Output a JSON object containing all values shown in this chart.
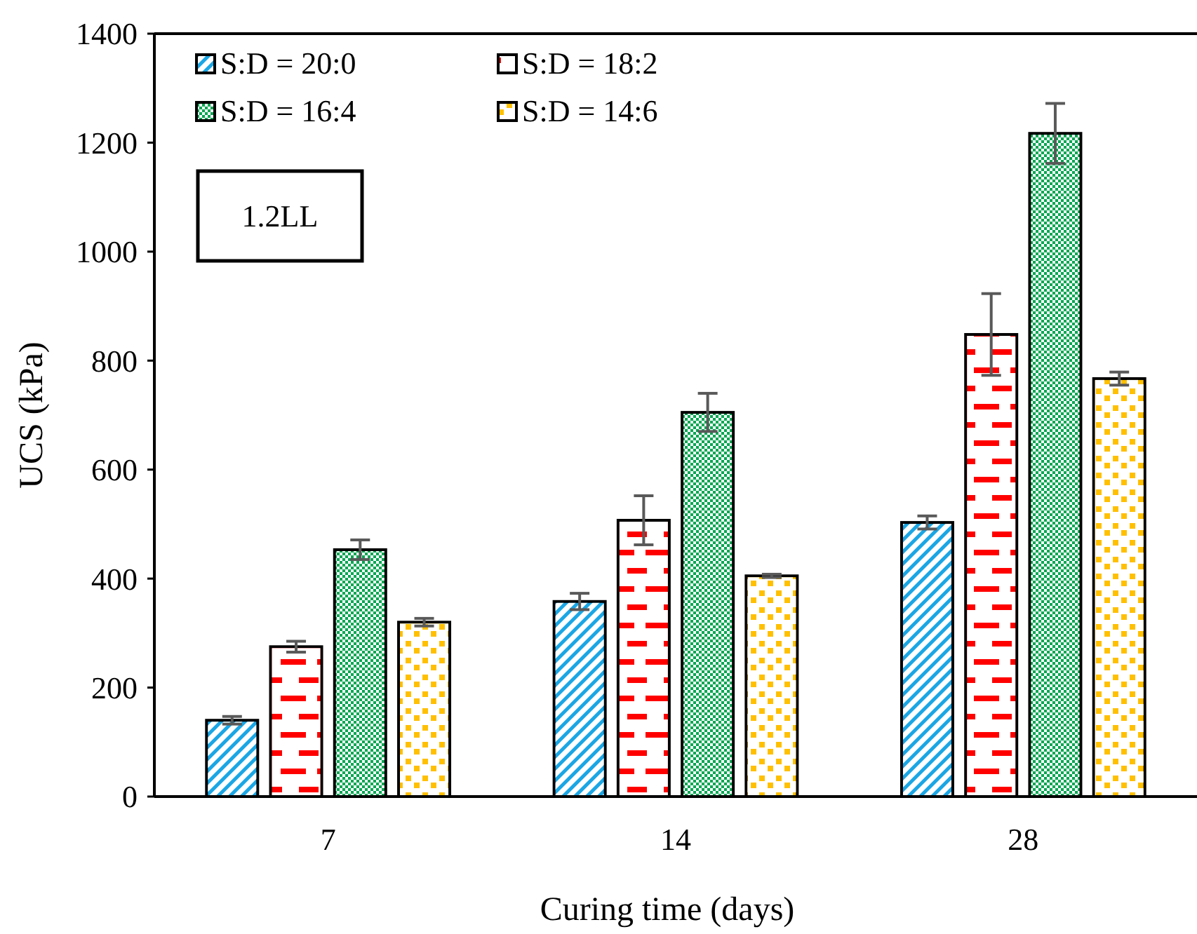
{
  "chart_data": {
    "type": "bar",
    "xlabel": "Curing time (days)",
    "ylabel": "UCS (kPa)",
    "categories": [
      "7",
      "14",
      "28"
    ],
    "series": [
      {
        "name": "S:D = 20:0",
        "color": "#1ba6e4",
        "values": [
          140,
          358,
          503
        ],
        "errors": [
          7,
          15,
          12
        ]
      },
      {
        "name": "S:D = 18:2",
        "color": "#ff0000",
        "values": [
          275,
          507,
          848
        ],
        "errors": [
          10,
          45,
          75
        ]
      },
      {
        "name": "S:D = 16:4",
        "color": "#00a651",
        "values": [
          453,
          705,
          1217
        ],
        "errors": [
          18,
          35,
          55
        ]
      },
      {
        "name": "S:D = 14:6",
        "color": "#ffc000",
        "values": [
          320,
          405,
          767
        ],
        "errors": [
          7,
          3,
          12
        ]
      }
    ],
    "ylim": [
      0,
      1400
    ],
    "yticks": [
      0,
      200,
      400,
      600,
      800,
      1000,
      1200,
      1400
    ],
    "grid": false,
    "legend": "top left",
    "annotations": [
      "1.2LL"
    ]
  }
}
